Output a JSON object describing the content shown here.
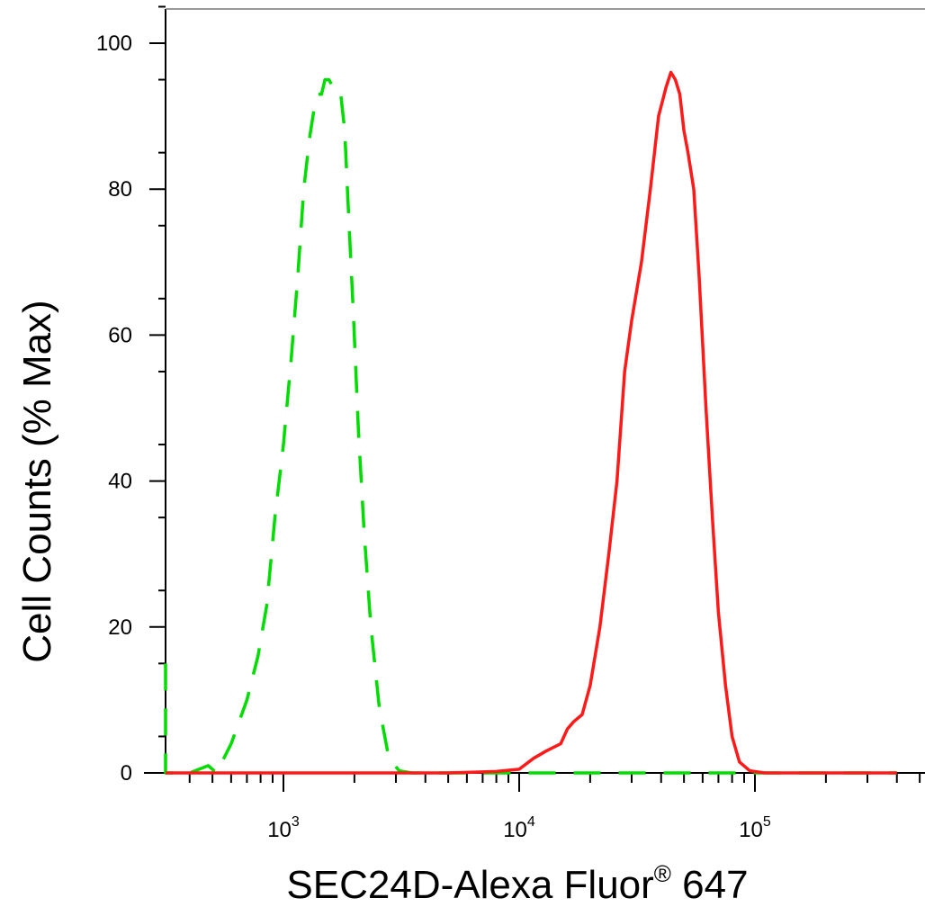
{
  "chart_data": {
    "type": "line",
    "title": "",
    "xlabel": "SEC24D-Alexa Fluor",
    "xlabel_sup": "®",
    "xlabel_suffix": " 647",
    "ylabel": "Cell Counts (% Max)",
    "xscale": "log",
    "xlim": [
      280,
      400000
    ],
    "ylim": [
      0,
      100
    ],
    "yticks": [
      0,
      20,
      40,
      60,
      80,
      100
    ],
    "ytick_labels": [
      "0",
      "20",
      "40",
      "60",
      "80",
      "100"
    ],
    "xticks_major": [
      1000,
      10000,
      100000
    ],
    "xtick_labels": [
      {
        "base": "10",
        "exp": "3"
      },
      {
        "base": "10",
        "exp": "4"
      },
      {
        "base": "10",
        "exp": "5"
      }
    ],
    "grid": false,
    "series": [
      {
        "color": "#00dd00",
        "style": "dashed",
        "x": [
          280,
          290,
          300,
          320,
          400,
          480,
          520,
          600,
          700,
          780,
          850,
          920,
          1000,
          1080,
          1150,
          1220,
          1290,
          1350,
          1400,
          1450,
          1500,
          1560,
          1620,
          1680,
          1750,
          1820,
          1900,
          1980,
          2080,
          2200,
          2350,
          2550,
          2800,
          3100,
          3500,
          4000,
          6000,
          10000,
          30000,
          100000,
          400000
        ],
        "y": [
          15,
          6,
          0,
          0,
          0,
          1,
          0,
          4,
          10,
          16,
          23,
          35,
          45,
          57,
          68,
          80,
          87,
          91,
          93,
          93,
          95,
          95,
          94,
          93,
          93,
          88,
          75,
          63,
          47,
          33,
          20,
          9,
          2,
          0.3,
          0,
          0,
          0,
          0,
          0,
          0,
          0
        ]
      },
      {
        "color": "#ff1a1a",
        "style": "solid",
        "x": [
          280,
          5000,
          8000,
          10000,
          11500,
          13000,
          15000,
          16000,
          17000,
          18500,
          20000,
          22000,
          24000,
          26000,
          28000,
          30000,
          33000,
          36000,
          39000,
          42000,
          44000,
          46000,
          48000,
          50000,
          52000,
          55000,
          58000,
          62000,
          66000,
          70000,
          75000,
          80000,
          86000,
          95000,
          110000,
          150000,
          400000
        ],
        "y": [
          0,
          0,
          0.2,
          0.5,
          2,
          3,
          4,
          6,
          7,
          8,
          12,
          20,
          30,
          40,
          55,
          62,
          70,
          80,
          90,
          94,
          96,
          95,
          93,
          88,
          85,
          80,
          68,
          50,
          35,
          22,
          12,
          5,
          1.5,
          0.3,
          0,
          0,
          0
        ]
      }
    ]
  }
}
